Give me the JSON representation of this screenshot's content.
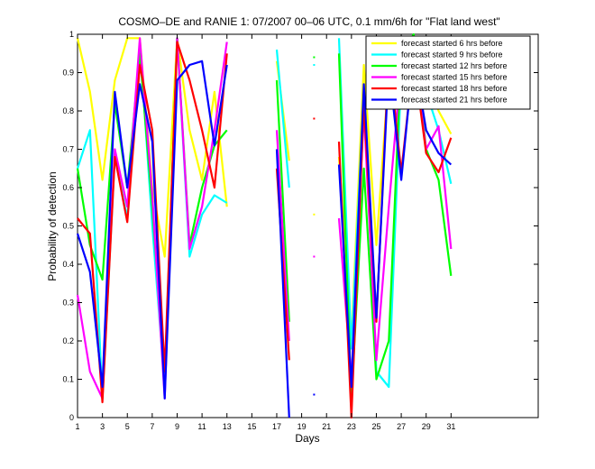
{
  "chart_data": {
    "type": "line",
    "title": "COSMO–DE and RANIE 1: 07/2007 00–06 UTC, 0.1 mm/6h for \"Flat land west\"",
    "xlabel": "Days",
    "ylabel": "Probability of detection",
    "xlim": [
      1,
      38
    ],
    "ylim": [
      0,
      1
    ],
    "xticks": [
      1,
      3,
      5,
      7,
      9,
      11,
      13,
      15,
      17,
      19,
      21,
      23,
      25,
      27,
      29,
      31
    ],
    "yticks": [
      0,
      0.1,
      0.2,
      0.3,
      0.4,
      0.5,
      0.6,
      0.7,
      0.8,
      0.9,
      1
    ],
    "ytick_labels": [
      "0",
      "0.1",
      "0.2",
      "0.3",
      "0.4",
      "0.5",
      "0.6",
      "0.7",
      "0.8",
      "0.9",
      "1"
    ],
    "legend_position": "top-right",
    "grid": false,
    "x": [
      1,
      2,
      3,
      4,
      5,
      6,
      7,
      8,
      9,
      10,
      11,
      12,
      13,
      14,
      15,
      16,
      17,
      18,
      19,
      20,
      21,
      22,
      23,
      24,
      25,
      26,
      27,
      28,
      29,
      30,
      31
    ],
    "series": [
      {
        "name": "forecast started 6 hrs before",
        "color": "#ffff00",
        "values": [
          0.99,
          0.85,
          0.62,
          0.88,
          0.99,
          0.99,
          0.6,
          0.42,
          0.99,
          0.75,
          0.62,
          0.85,
          0.55,
          null,
          null,
          null,
          0.93,
          0.67,
          null,
          0.53,
          null,
          0.68,
          0.2,
          0.92,
          0.45,
          0.9,
          0.99,
          0.99,
          0.9,
          0.8,
          0.74
        ]
      },
      {
        "name": "forecast started 9 hrs before",
        "color": "#00ffff",
        "values": [
          0.65,
          0.75,
          0.05,
          0.68,
          0.52,
          0.98,
          0.5,
          0.08,
          0.99,
          0.42,
          0.53,
          0.58,
          0.56,
          null,
          null,
          null,
          0.96,
          0.6,
          null,
          0.92,
          null,
          0.99,
          0.18,
          0.85,
          0.12,
          0.08,
          0.9,
          0.98,
          0.85,
          0.75,
          0.61
        ]
      },
      {
        "name": "forecast started 12 hrs before",
        "color": "#00ff00",
        "values": [
          0.65,
          0.45,
          0.36,
          0.82,
          0.6,
          0.95,
          0.55,
          0.1,
          0.99,
          0.45,
          0.6,
          0.71,
          0.75,
          null,
          null,
          null,
          0.88,
          0.25,
          null,
          0.94,
          null,
          0.95,
          0.05,
          0.65,
          0.1,
          0.2,
          0.95,
          1.0,
          0.7,
          0.62,
          0.37
        ]
      },
      {
        "name": "forecast started 15 hrs before",
        "color": "#ff00ff",
        "values": [
          0.32,
          0.12,
          0.05,
          0.7,
          0.55,
          0.99,
          0.58,
          0.05,
          0.99,
          0.44,
          0.55,
          0.75,
          0.98,
          null,
          null,
          null,
          0.75,
          0.2,
          null,
          0.42,
          null,
          0.52,
          0.1,
          0.8,
          0.15,
          0.55,
          0.92,
          0.95,
          0.7,
          0.76,
          0.44
        ]
      },
      {
        "name": "forecast started 18 hrs before",
        "color": "#ff0000",
        "values": [
          0.52,
          0.48,
          0.04,
          0.68,
          0.51,
          0.92,
          0.75,
          0.12,
          0.98,
          0.88,
          0.75,
          0.6,
          0.95,
          null,
          null,
          null,
          0.65,
          0.15,
          null,
          0.78,
          null,
          0.72,
          0.0,
          0.82,
          0.25,
          0.95,
          0.64,
          0.94,
          0.69,
          0.64,
          0.73
        ]
      },
      {
        "name": "forecast started 21 hrs before",
        "color": "#0000ff",
        "values": [
          0.48,
          0.38,
          0.08,
          0.85,
          0.6,
          0.87,
          0.72,
          0.05,
          0.88,
          0.92,
          0.93,
          0.71,
          0.92,
          null,
          null,
          null,
          0.7,
          0.0,
          null,
          0.06,
          null,
          0.66,
          0.08,
          0.87,
          0.26,
          0.92,
          0.62,
          0.95,
          0.75,
          0.69,
          0.66
        ]
      }
    ]
  }
}
